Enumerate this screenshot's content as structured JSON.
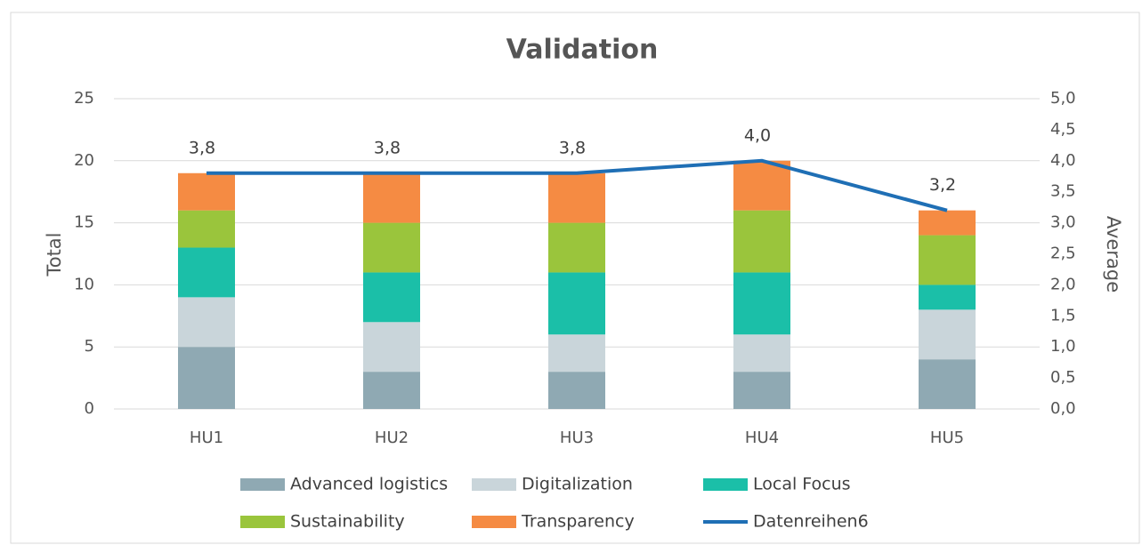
{
  "chart_data": {
    "type": "bar",
    "stacked": true,
    "title": "Validation",
    "y_label": "Total",
    "y2_label": "Average",
    "categories": [
      "HU1",
      "HU2",
      "HU3",
      "HU4",
      "HU5"
    ],
    "series": [
      {
        "name": "Advanced logistics",
        "color": "#8fa9b3",
        "values": [
          5,
          3,
          3,
          3,
          4
        ]
      },
      {
        "name": "Digitalization",
        "color": "#c9d5da",
        "values": [
          4,
          4,
          3,
          3,
          4
        ]
      },
      {
        "name": "Local Focus",
        "color": "#1bbfa8",
        "values": [
          4,
          4,
          5,
          5,
          2
        ]
      },
      {
        "name": "Sustainability",
        "color": "#9ac53c",
        "values": [
          3,
          4,
          4,
          5,
          4
        ]
      },
      {
        "name": "Transparency",
        "color": "#f58b43",
        "values": [
          3,
          4,
          4,
          4,
          2
        ]
      },
      {
        "name": "Datenreihen6",
        "color": "#1f6fb5",
        "type": "line",
        "axis": "y2",
        "values": [
          3.8,
          3.8,
          3.8,
          4.0,
          3.2
        ],
        "value_labels": [
          "3,8",
          "3,8",
          "3,8",
          "4,0",
          "3,2"
        ]
      }
    ],
    "ylim": [
      0,
      25
    ],
    "yticks": [
      0,
      5,
      10,
      15,
      20,
      25
    ],
    "y2lim": [
      0,
      5
    ],
    "y2ticks": [
      {
        "value": 0,
        "label": "0,0"
      },
      {
        "value": 0.5,
        "label": "0,5"
      },
      {
        "value": 1,
        "label": "1,0"
      },
      {
        "value": 1.5,
        "label": "1,5"
      },
      {
        "value": 2,
        "label": "2,0"
      },
      {
        "value": 2.5,
        "label": "2,5"
      },
      {
        "value": 3,
        "label": "3,0"
      },
      {
        "value": 3.5,
        "label": "3,5"
      },
      {
        "value": 4,
        "label": "4,0"
      },
      {
        "value": 4.5,
        "label": "4,5"
      },
      {
        "value": 5,
        "label": "5,0"
      }
    ],
    "grid": true,
    "legend": "bottom"
  }
}
